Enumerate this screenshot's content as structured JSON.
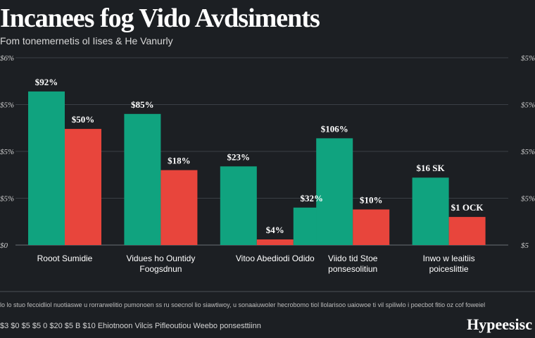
{
  "chart_data": {
    "type": "bar",
    "title": "Incanees fog Vido Avdsiments",
    "subtitle": "Fom tonemernetis ol Iises & He Vanurly",
    "categories": [
      [
        "Rooot Sumidie"
      ],
      [
        "Vidues ho Ountidy",
        "Foogsdnun"
      ],
      [
        "Vitoo Abediodi Odido"
      ],
      [
        "Viido tid Stoe",
        "ponsesolitiun"
      ],
      [
        "Inwo w leaitiis",
        "poiceslittie"
      ]
    ],
    "series": [
      {
        "color": "#10a37f",
        "values": [
          82,
          70,
          42,
          57,
          36
        ],
        "labels": [
          "$92%",
          "$85%",
          "$23%",
          "$106%",
          "$16 SK"
        ]
      },
      {
        "color": "#e8453c",
        "values": [
          62,
          40,
          3,
          19,
          15
        ],
        "labels": [
          "$50%",
          "$18%",
          "$4%",
          "$10%",
          "$1 OCK"
        ]
      }
    ],
    "extra_bars": [
      {
        "category_index": 2,
        "color": "#10a37f",
        "value": 20,
        "label": "$32%"
      }
    ],
    "ylim": [
      0,
      100
    ],
    "y_ticks_left": [
      "$0",
      "$5%",
      "$5%",
      "$5%",
      "$6%"
    ],
    "y_ticks_right": [
      "$5",
      "$5%",
      "$5%",
      "$5%",
      "$5%"
    ],
    "grid": true,
    "legend": "none"
  },
  "footer": {
    "notes": "lo lo stuo fecoidliol nuotiaswe u rorrarwelitio pumonoen ss ru soecnol lio siawtiwoy, u sonaaiuwoler hecrobomo tiol llolarisoo uaiowoe ti vil spiliwlo i poecbot fitio oz cof foweiel",
    "source": "$3 $0 $5 $5 0 $20 $5 B $10 Ehiotnoon Vilcis Pifleoutiou Weebo ponsesttiinn",
    "brand": "Hypeesisc"
  }
}
